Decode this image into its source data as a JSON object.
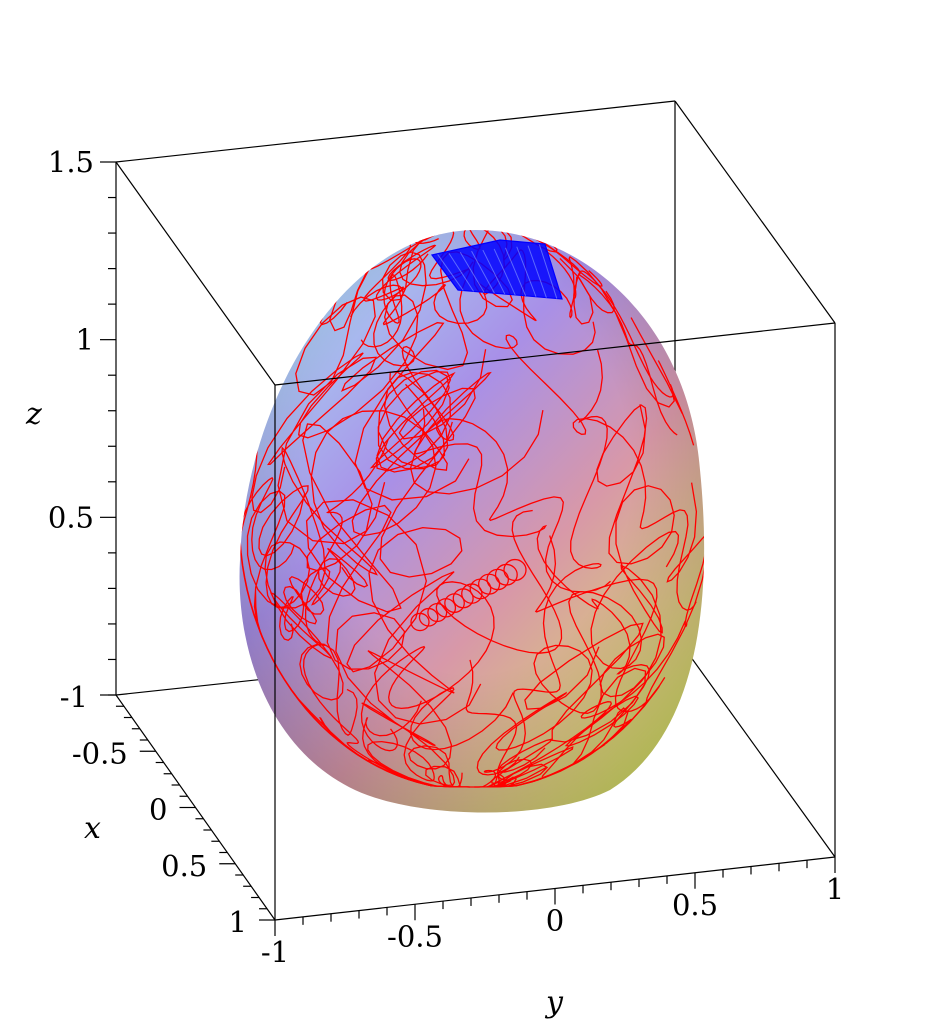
{
  "chart_data": {
    "type": "scatter",
    "plot_kind": "3d-surface-with-space-curves",
    "title": "",
    "axes": {
      "x": {
        "label": "x",
        "range": [
          -1,
          1
        ],
        "ticks": [
          -1,
          -0.5,
          0,
          0.5,
          1
        ],
        "tick_labels": [
          "-1",
          "-0.5",
          "0",
          "0.5",
          "1"
        ]
      },
      "y": {
        "label": "y",
        "range": [
          -1,
          1
        ],
        "ticks": [
          -1,
          -0.5,
          0,
          0.5,
          1
        ],
        "tick_labels": [
          "-1",
          "-0.5",
          "0",
          "0.5",
          "1"
        ]
      },
      "z": {
        "label": "z",
        "range": [
          0,
          1.5
        ],
        "ticks": [
          0.5,
          1,
          1.5
        ],
        "tick_labels": [
          "0.5",
          "1",
          "1.5"
        ]
      }
    },
    "surface": {
      "shape": "egg-shaped closed surface",
      "x_range": [
        -1,
        1
      ],
      "y_range": [
        -1,
        1
      ],
      "z_range": [
        0,
        1.3
      ],
      "colormap": [
        "#c8e070",
        "#e08870",
        "#9a80e0",
        "#a8c8f0"
      ]
    },
    "series": [
      {
        "color": "#ff0000",
        "curve_kind": "chaotic trajectory on surface"
      },
      {
        "color": "#0000ff",
        "curve_kind": "dense trajectory near top"
      }
    ],
    "grid": false,
    "box": true
  }
}
